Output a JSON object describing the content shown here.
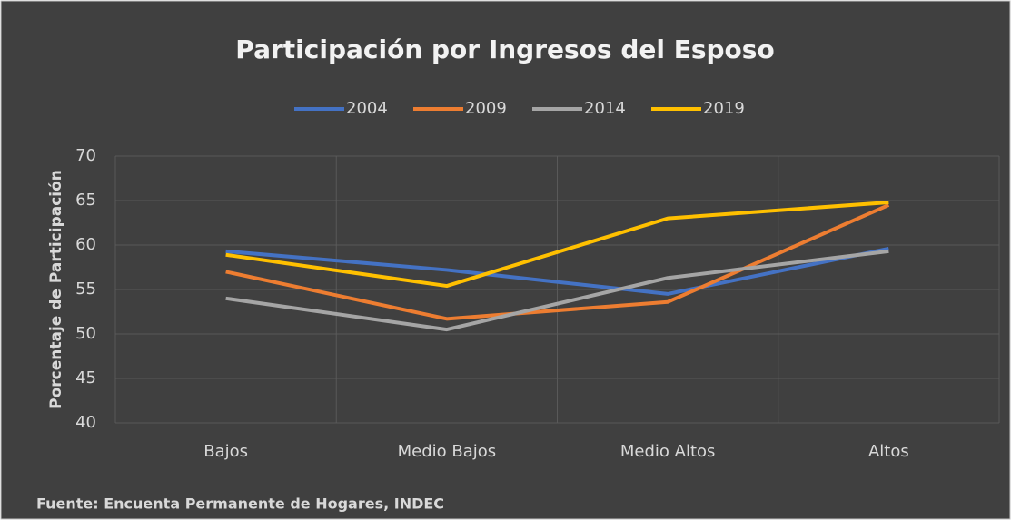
{
  "chart_data": {
    "type": "line",
    "title": "Participación por Ingresos del Esposo",
    "y_label": "Porcentaje de Participación",
    "source": "Fuente: Encuenta Permanente de Hogares, INDEC",
    "categories": [
      "Bajos",
      "Medio Bajos",
      "Medio Altos",
      "Altos"
    ],
    "series": [
      {
        "name": "2004",
        "color": "#4472c4",
        "values": [
          59.3,
          57.2,
          54.5,
          59.6
        ]
      },
      {
        "name": "2009",
        "color": "#ed7d31",
        "values": [
          57.0,
          51.7,
          53.6,
          64.5
        ]
      },
      {
        "name": "2014",
        "color": "#a5a5a5",
        "values": [
          54.0,
          50.5,
          56.3,
          59.3
        ]
      },
      {
        "name": "2019",
        "color": "#ffc000",
        "values": [
          58.9,
          55.4,
          63.0,
          64.8
        ]
      }
    ],
    "ylim": [
      40,
      70
    ],
    "yticks": [
      40,
      45,
      50,
      55,
      60,
      65,
      70
    ],
    "grid": true,
    "legend": "top"
  }
}
